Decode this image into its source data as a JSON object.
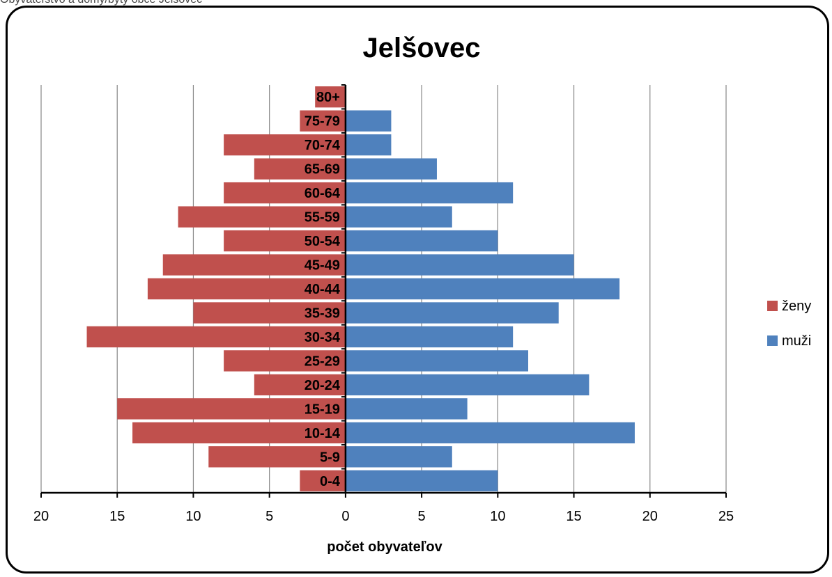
{
  "header_strip": "Obyvateľstvo a domy/byty obce Jelšovec",
  "colors": {
    "zeny": "#C0504D",
    "muzi": "#4F81BD",
    "grid": "#868686",
    "axis": "#000000"
  },
  "chart_data": {
    "type": "bar",
    "orientation": "horizontal",
    "title": "Jelšovec",
    "xlabel": "počet obyvateľov",
    "ylabel": "",
    "xlim": [
      -20,
      25
    ],
    "x_ticks": [
      -20,
      -15,
      -10,
      -5,
      0,
      5,
      10,
      15,
      20,
      25
    ],
    "x_tick_labels": [
      "20",
      "15",
      "10",
      "5",
      "0",
      "5",
      "10",
      "15",
      "20",
      "25"
    ],
    "grid": true,
    "legend_position": "right",
    "categories": [
      "0-4",
      "5-9",
      "10-14",
      "15-19",
      "20-24",
      "25-29",
      "30-34",
      "35-39",
      "40-44",
      "45-49",
      "50-54",
      "55-59",
      "60-64",
      "65-69",
      "70-74",
      "75-79",
      "80+"
    ],
    "series": [
      {
        "name": "ženy",
        "color": "#C0504D",
        "values": [
          3,
          9,
          14,
          15,
          6,
          8,
          17,
          10,
          13,
          12,
          8,
          11,
          8,
          6,
          8,
          3,
          2
        ]
      },
      {
        "name": "muži",
        "color": "#4F81BD",
        "values": [
          10,
          7,
          19,
          8,
          16,
          12,
          11,
          14,
          18,
          15,
          10,
          7,
          11,
          6,
          3,
          3,
          0
        ]
      }
    ]
  }
}
